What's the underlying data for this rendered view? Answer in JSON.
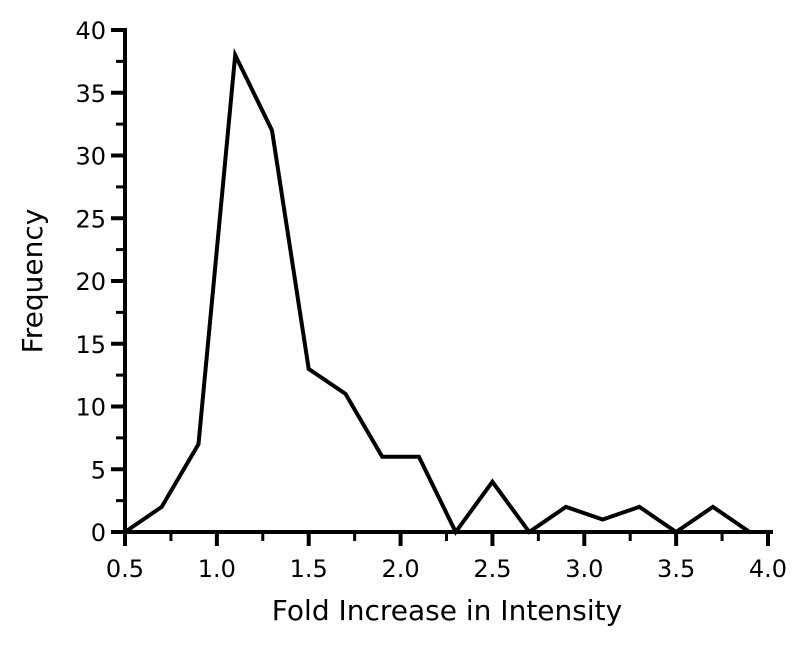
{
  "chart_data": {
    "type": "line",
    "title": "",
    "xlabel": "Fold Increase in Intensity",
    "ylabel": "Frequency",
    "x": [
      0.5,
      0.7,
      0.9,
      1.1,
      1.3,
      1.5,
      1.7,
      1.9,
      2.1,
      2.3,
      2.5,
      2.7,
      2.9,
      3.1,
      3.3,
      3.5,
      3.7,
      3.9
    ],
    "y": [
      0,
      2,
      7,
      38,
      32,
      13,
      11,
      6,
      6,
      0,
      4,
      0,
      2,
      1,
      2,
      0,
      2,
      0
    ],
    "xlim": [
      0.5,
      4.0
    ],
    "ylim": [
      0,
      40
    ],
    "x_major_ticks": [
      0.5,
      1.0,
      1.5,
      2.0,
      2.5,
      3.0,
      3.5,
      4.0
    ],
    "x_tick_labels": [
      "0.5",
      "1.0",
      "1.5",
      "2.0",
      "2.5",
      "3.0",
      "3.5",
      "4.0"
    ],
    "x_minor_ticks": [
      0.75,
      1.25,
      1.75,
      2.25,
      2.75,
      3.25,
      3.75
    ],
    "y_major_ticks": [
      0,
      5,
      10,
      15,
      20,
      25,
      30,
      35,
      40
    ],
    "y_tick_labels": [
      "0",
      "5",
      "10",
      "15",
      "20",
      "25",
      "30",
      "35",
      "40"
    ],
    "y_minor_ticks": [
      2.5,
      7.5,
      12.5,
      17.5,
      22.5,
      27.5,
      32.5,
      37.5
    ],
    "line_color": "#000000",
    "line_width": 4,
    "axis_color": "#000000",
    "background": "#ffffff",
    "grid": false,
    "legend": "none"
  }
}
